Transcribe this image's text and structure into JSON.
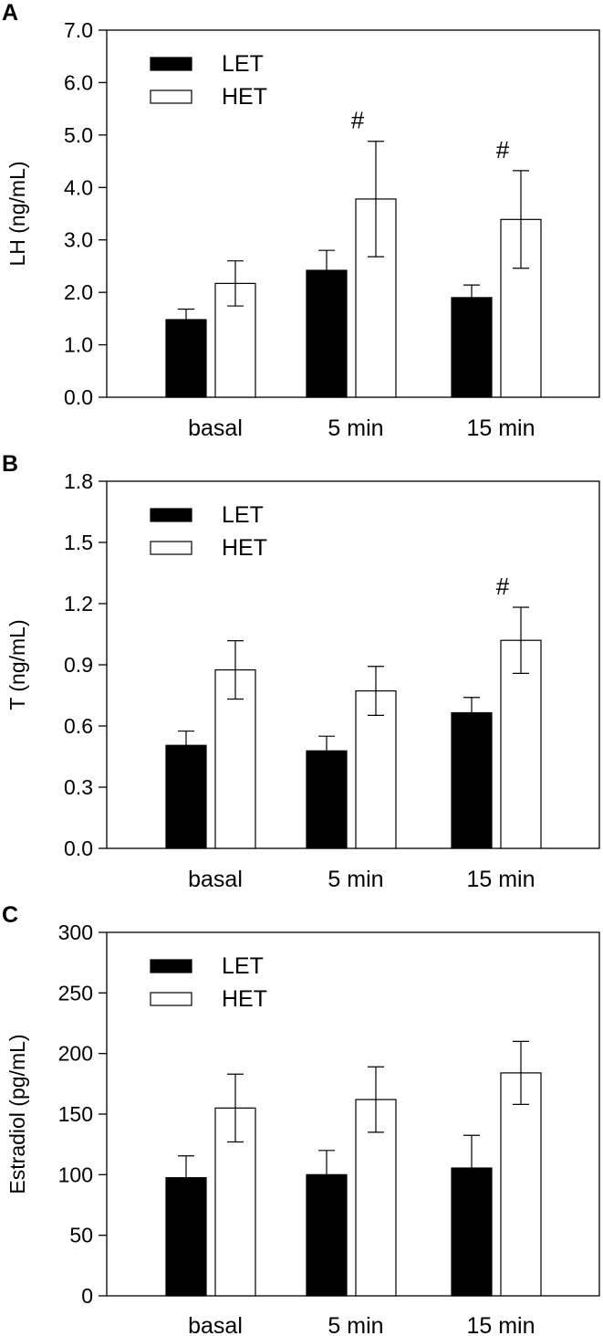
{
  "chart_data": [
    {
      "type": "bar",
      "panel_label": "A",
      "ylabel": "LH (ng/mL)",
      "ylim": [
        0,
        7
      ],
      "yticks": [
        "0.0",
        "1.0",
        "2.0",
        "3.0",
        "4.0",
        "5.0",
        "6.0",
        "7.0"
      ],
      "categories": [
        "basal",
        "5 min",
        "15 min"
      ],
      "series": [
        {
          "name": "LET",
          "color": "#000000",
          "values": [
            1.48,
            2.42,
            1.9
          ],
          "errors": [
            0.2,
            0.38,
            0.24
          ]
        },
        {
          "name": "HET",
          "color": "#ffffff",
          "values": [
            2.17,
            3.78,
            3.39
          ],
          "errors": [
            0.43,
            1.1,
            0.93
          ]
        }
      ],
      "annotations": [
        {
          "category": "5 min",
          "text": "#"
        },
        {
          "category": "15 min",
          "text": "#"
        }
      ],
      "legend": "top-left"
    },
    {
      "type": "bar",
      "panel_label": "B",
      "ylabel": "T (ng/mL)",
      "ylim": [
        0,
        1.8
      ],
      "yticks": [
        "0.0",
        "0.3",
        "0.6",
        "0.9",
        "1.2",
        "1.5",
        "1.8"
      ],
      "categories": [
        "basal",
        "5 min",
        "15 min"
      ],
      "series": [
        {
          "name": "LET",
          "color": "#000000",
          "values": [
            0.505,
            0.478,
            0.665
          ],
          "errors": [
            0.07,
            0.072,
            0.075
          ]
        },
        {
          "name": "HET",
          "color": "#ffffff",
          "values": [
            0.875,
            0.772,
            1.02
          ],
          "errors": [
            0.143,
            0.12,
            0.162
          ]
        }
      ],
      "annotations": [
        {
          "category": "15 min",
          "text": "#"
        }
      ],
      "legend": "top-left"
    },
    {
      "type": "bar",
      "panel_label": "C",
      "ylabel": "Estradiol (pg/mL)",
      "ylim": [
        0,
        300
      ],
      "yticks": [
        "0",
        "50",
        "100",
        "150",
        "200",
        "250",
        "300"
      ],
      "categories": [
        "basal",
        "5 min",
        "15 min"
      ],
      "series": [
        {
          "name": "LET",
          "color": "#000000",
          "values": [
            97.5,
            100,
            105.5
          ],
          "errors": [
            18,
            20,
            27
          ]
        },
        {
          "name": "HET",
          "color": "#ffffff",
          "values": [
            155,
            162,
            184
          ],
          "errors": [
            28,
            27,
            26
          ]
        }
      ],
      "annotations": [],
      "legend": "top-left"
    }
  ]
}
